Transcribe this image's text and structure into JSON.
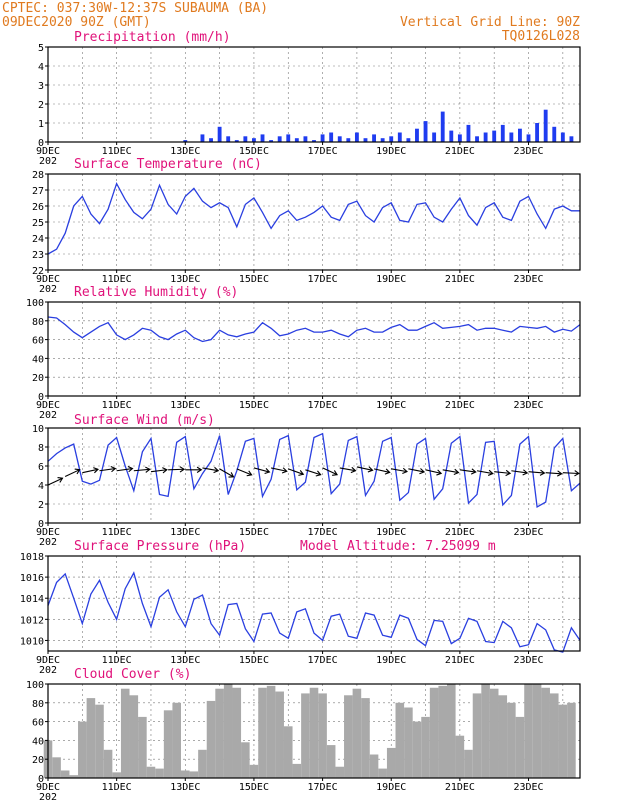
{
  "header": {
    "line1_left": "CPTEC:  037:30W-12:37S  SUBAUMA (BA)",
    "line2_left": "09DEC2020 90Z (GMT)",
    "line1_right": "Vertical Grid Line: 90Z",
    "line2_right": "TQ0126L028"
  },
  "colors": {
    "header": "#e07a1f",
    "panel_title": "#e0127a",
    "series": "#2a3fe0",
    "precip_bars": "#1f3cf0",
    "cloud_bars": "#a9a9a9",
    "wind_arrows": "#000000"
  },
  "x_axis": {
    "start": "2020-12-09T00:00Z",
    "end": "2020-12-24T12:00Z",
    "tick_labels": [
      "9DEC",
      "11DEC",
      "13DEC",
      "15DEC",
      "17DEC",
      "19DEC",
      "21DEC",
      "23DEC"
    ],
    "year_label": "202"
  },
  "chart_data": [
    {
      "type": "bar",
      "title": "Precipitation (mm/h)",
      "ylim": [
        0,
        5
      ],
      "yticks": [
        0,
        1,
        2,
        3,
        4,
        5
      ],
      "grid": true,
      "x": [
        "2020-12-13T00:00Z",
        "2020-12-13T12:00Z",
        "2020-12-13T18:00Z",
        "2020-12-14T00:00Z",
        "2020-12-14T06:00Z",
        "2020-12-14T12:00Z",
        "2020-12-14T18:00Z",
        "2020-12-15T00:00Z",
        "2020-12-15T06:00Z",
        "2020-12-15T12:00Z",
        "2020-12-15T18:00Z",
        "2020-12-16T00:00Z",
        "2020-12-16T06:00Z",
        "2020-12-16T12:00Z",
        "2020-12-16T18:00Z",
        "2020-12-17T00:00Z",
        "2020-12-17T06:00Z",
        "2020-12-17T12:00Z",
        "2020-12-17T18:00Z",
        "2020-12-18T00:00Z",
        "2020-12-18T06:00Z",
        "2020-12-18T12:00Z",
        "2020-12-18T18:00Z",
        "2020-12-19T00:00Z",
        "2020-12-19T06:00Z",
        "2020-12-19T12:00Z",
        "2020-12-19T18:00Z",
        "2020-12-20T00:00Z",
        "2020-12-20T06:00Z",
        "2020-12-20T12:00Z",
        "2020-12-20T18:00Z",
        "2020-12-21T00:00Z",
        "2020-12-21T06:00Z",
        "2020-12-21T12:00Z",
        "2020-12-21T18:00Z",
        "2020-12-22T00:00Z",
        "2020-12-22T06:00Z",
        "2020-12-22T12:00Z",
        "2020-12-22T18:00Z",
        "2020-12-23T00:00Z",
        "2020-12-23T06:00Z",
        "2020-12-23T12:00Z",
        "2020-12-23T18:00Z",
        "2020-12-24T00:00Z",
        "2020-12-24T06:00Z"
      ],
      "values": [
        0.1,
        0.4,
        0.2,
        0.8,
        0.3,
        0.1,
        0.3,
        0.2,
        0.4,
        0.1,
        0.3,
        0.4,
        0.2,
        0.3,
        0.1,
        0.4,
        0.5,
        0.3,
        0.2,
        0.5,
        0.2,
        0.4,
        0.2,
        0.3,
        0.5,
        0.2,
        0.7,
        1.1,
        0.5,
        1.6,
        0.6,
        0.4,
        0.9,
        0.3,
        0.5,
        0.6,
        0.9,
        0.5,
        0.7,
        0.4,
        1.0,
        1.7,
        0.8,
        0.5,
        0.3
      ]
    },
    {
      "type": "line",
      "title": "Surface Temperature (nC)",
      "ylim": [
        22,
        28
      ],
      "yticks": [
        22,
        23,
        24,
        25,
        26,
        27,
        28
      ],
      "grid": true,
      "x": [
        "2020-12-09T00:00Z",
        "2020-12-09T06:00Z",
        "2020-12-09T12:00Z",
        "2020-12-09T18:00Z",
        "2020-12-10T00:00Z",
        "2020-12-10T06:00Z",
        "2020-12-10T12:00Z",
        "2020-12-10T18:00Z",
        "2020-12-11T00:00Z",
        "2020-12-11T06:00Z",
        "2020-12-11T12:00Z",
        "2020-12-11T18:00Z",
        "2020-12-12T00:00Z",
        "2020-12-12T06:00Z",
        "2020-12-12T12:00Z",
        "2020-12-12T18:00Z",
        "2020-12-13T00:00Z",
        "2020-12-13T06:00Z",
        "2020-12-13T12:00Z",
        "2020-12-13T18:00Z",
        "2020-12-14T00:00Z",
        "2020-12-14T06:00Z",
        "2020-12-14T12:00Z",
        "2020-12-14T18:00Z",
        "2020-12-15T00:00Z",
        "2020-12-15T06:00Z",
        "2020-12-15T12:00Z",
        "2020-12-15T18:00Z",
        "2020-12-16T00:00Z",
        "2020-12-16T06:00Z",
        "2020-12-16T12:00Z",
        "2020-12-16T18:00Z",
        "2020-12-17T00:00Z",
        "2020-12-17T06:00Z",
        "2020-12-17T12:00Z",
        "2020-12-17T18:00Z",
        "2020-12-18T00:00Z",
        "2020-12-18T06:00Z",
        "2020-12-18T12:00Z",
        "2020-12-18T18:00Z",
        "2020-12-19T00:00Z",
        "2020-12-19T06:00Z",
        "2020-12-19T12:00Z",
        "2020-12-19T18:00Z",
        "2020-12-20T00:00Z",
        "2020-12-20T06:00Z",
        "2020-12-20T12:00Z",
        "2020-12-20T18:00Z",
        "2020-12-21T00:00Z",
        "2020-12-21T06:00Z",
        "2020-12-21T12:00Z",
        "2020-12-21T18:00Z",
        "2020-12-22T00:00Z",
        "2020-12-22T06:00Z",
        "2020-12-22T12:00Z",
        "2020-12-22T18:00Z",
        "2020-12-23T00:00Z",
        "2020-12-23T06:00Z",
        "2020-12-23T12:00Z",
        "2020-12-23T18:00Z",
        "2020-12-24T00:00Z",
        "2020-12-24T06:00Z",
        "2020-12-24T12:00Z"
      ],
      "values": [
        23.0,
        23.3,
        24.3,
        26.0,
        26.6,
        25.5,
        24.9,
        25.8,
        27.4,
        26.4,
        25.6,
        25.2,
        25.8,
        27.3,
        26.1,
        25.5,
        26.6,
        27.1,
        26.3,
        25.9,
        26.2,
        25.9,
        24.7,
        26.1,
        26.5,
        25.6,
        24.6,
        25.4,
        25.7,
        25.1,
        25.3,
        25.6,
        26.0,
        25.3,
        25.1,
        26.1,
        26.3,
        25.4,
        25.0,
        25.9,
        26.2,
        25.1,
        25.0,
        26.1,
        26.2,
        25.3,
        25.0,
        25.8,
        26.5,
        25.4,
        24.8,
        25.9,
        26.2,
        25.3,
        25.1,
        26.3,
        26.6,
        25.5,
        24.6,
        25.8,
        26.0,
        25.7,
        25.7
      ]
    },
    {
      "type": "line",
      "title": "Relative Humidity (%)",
      "ylim": [
        0,
        100
      ],
      "yticks": [
        0,
        20,
        40,
        60,
        80,
        100
      ],
      "grid": true,
      "x": [
        "2020-12-09T00:00Z",
        "2020-12-09T06:00Z",
        "2020-12-09T12:00Z",
        "2020-12-09T18:00Z",
        "2020-12-10T00:00Z",
        "2020-12-10T06:00Z",
        "2020-12-10T12:00Z",
        "2020-12-10T18:00Z",
        "2020-12-11T00:00Z",
        "2020-12-11T06:00Z",
        "2020-12-11T12:00Z",
        "2020-12-11T18:00Z",
        "2020-12-12T00:00Z",
        "2020-12-12T06:00Z",
        "2020-12-12T12:00Z",
        "2020-12-12T18:00Z",
        "2020-12-13T00:00Z",
        "2020-12-13T06:00Z",
        "2020-12-13T12:00Z",
        "2020-12-13T18:00Z",
        "2020-12-14T00:00Z",
        "2020-12-14T06:00Z",
        "2020-12-14T12:00Z",
        "2020-12-14T18:00Z",
        "2020-12-15T00:00Z",
        "2020-12-15T06:00Z",
        "2020-12-15T12:00Z",
        "2020-12-15T18:00Z",
        "2020-12-16T00:00Z",
        "2020-12-16T06:00Z",
        "2020-12-16T12:00Z",
        "2020-12-16T18:00Z",
        "2020-12-17T00:00Z",
        "2020-12-17T06:00Z",
        "2020-12-17T12:00Z",
        "2020-12-17T18:00Z",
        "2020-12-18T00:00Z",
        "2020-12-18T06:00Z",
        "2020-12-18T12:00Z",
        "2020-12-18T18:00Z",
        "2020-12-19T00:00Z",
        "2020-12-19T06:00Z",
        "2020-12-19T12:00Z",
        "2020-12-19T18:00Z",
        "2020-12-20T00:00Z",
        "2020-12-20T06:00Z",
        "2020-12-20T12:00Z",
        "2020-12-20T18:00Z",
        "2020-12-21T00:00Z",
        "2020-12-21T06:00Z",
        "2020-12-21T12:00Z",
        "2020-12-21T18:00Z",
        "2020-12-22T00:00Z",
        "2020-12-22T06:00Z",
        "2020-12-22T12:00Z",
        "2020-12-22T18:00Z",
        "2020-12-23T00:00Z",
        "2020-12-23T06:00Z",
        "2020-12-23T12:00Z",
        "2020-12-23T18:00Z",
        "2020-12-24T00:00Z",
        "2020-12-24T06:00Z",
        "2020-12-24T12:00Z"
      ],
      "values": [
        84,
        83,
        76,
        68,
        62,
        68,
        74,
        78,
        65,
        60,
        65,
        72,
        70,
        63,
        60,
        66,
        70,
        62,
        58,
        60,
        70,
        65,
        63,
        66,
        68,
        78,
        72,
        64,
        66,
        70,
        72,
        68,
        68,
        70,
        66,
        63,
        70,
        72,
        68,
        68,
        73,
        76,
        70,
        70,
        74,
        78,
        72,
        73,
        74,
        76,
        70,
        72,
        72,
        70,
        68,
        74,
        73,
        72,
        74,
        68,
        71,
        69,
        76
      ]
    },
    {
      "type": "line",
      "title": "Surface Wind (m/s)",
      "ylim": [
        0,
        10
      ],
      "yticks": [
        0,
        2,
        4,
        6,
        8,
        10
      ],
      "grid": true,
      "x": [
        "2020-12-09T00:00Z",
        "2020-12-09T06:00Z",
        "2020-12-09T12:00Z",
        "2020-12-09T18:00Z",
        "2020-12-10T00:00Z",
        "2020-12-10T06:00Z",
        "2020-12-10T12:00Z",
        "2020-12-10T18:00Z",
        "2020-12-11T00:00Z",
        "2020-12-11T06:00Z",
        "2020-12-11T12:00Z",
        "2020-12-11T18:00Z",
        "2020-12-12T00:00Z",
        "2020-12-12T06:00Z",
        "2020-12-12T12:00Z",
        "2020-12-12T18:00Z",
        "2020-12-13T00:00Z",
        "2020-12-13T06:00Z",
        "2020-12-13T12:00Z",
        "2020-12-13T18:00Z",
        "2020-12-14T00:00Z",
        "2020-12-14T06:00Z",
        "2020-12-14T12:00Z",
        "2020-12-14T18:00Z",
        "2020-12-15T00:00Z",
        "2020-12-15T06:00Z",
        "2020-12-15T12:00Z",
        "2020-12-15T18:00Z",
        "2020-12-16T00:00Z",
        "2020-12-16T06:00Z",
        "2020-12-16T12:00Z",
        "2020-12-16T18:00Z",
        "2020-12-17T00:00Z",
        "2020-12-17T06:00Z",
        "2020-12-17T12:00Z",
        "2020-12-17T18:00Z",
        "2020-12-18T00:00Z",
        "2020-12-18T06:00Z",
        "2020-12-18T12:00Z",
        "2020-12-18T18:00Z",
        "2020-12-19T00:00Z",
        "2020-12-19T06:00Z",
        "2020-12-19T12:00Z",
        "2020-12-19T18:00Z",
        "2020-12-20T00:00Z",
        "2020-12-20T06:00Z",
        "2020-12-20T12:00Z",
        "2020-12-20T18:00Z",
        "2020-12-21T00:00Z",
        "2020-12-21T06:00Z",
        "2020-12-21T12:00Z",
        "2020-12-21T18:00Z",
        "2020-12-22T00:00Z",
        "2020-12-22T06:00Z",
        "2020-12-22T12:00Z",
        "2020-12-22T18:00Z",
        "2020-12-23T00:00Z",
        "2020-12-23T06:00Z",
        "2020-12-23T12:00Z",
        "2020-12-23T18:00Z",
        "2020-12-24T00:00Z",
        "2020-12-24T06:00Z",
        "2020-12-24T12:00Z"
      ],
      "values": [
        6.5,
        7.3,
        7.9,
        8.3,
        4.4,
        4.1,
        4.5,
        8.2,
        9.0,
        6.0,
        3.4,
        7.5,
        8.9,
        3.0,
        2.8,
        8.5,
        9.1,
        3.6,
        5.2,
        6.5,
        9.2,
        3.0,
        5.5,
        8.6,
        8.9,
        2.8,
        4.6,
        8.8,
        9.2,
        3.5,
        4.3,
        9.0,
        9.4,
        3.1,
        4.1,
        8.7,
        9.1,
        2.9,
        4.4,
        8.6,
        9.0,
        2.4,
        3.2,
        8.3,
        8.9,
        2.5,
        3.6,
        8.4,
        9.1,
        2.1,
        3.0,
        8.5,
        8.6,
        1.9,
        2.9,
        8.3,
        9.1,
        1.7,
        2.2,
        7.9,
        8.9,
        3.4,
        4.2
      ],
      "wind_arrows": {
        "x": [
          "2020-12-09T00:00Z",
          "2020-12-09T12:00Z",
          "2020-12-10T00:00Z",
          "2020-12-10T12:00Z",
          "2020-12-11T00:00Z",
          "2020-12-11T12:00Z",
          "2020-12-12T00:00Z",
          "2020-12-12T12:00Z",
          "2020-12-13T00:00Z",
          "2020-12-13T12:00Z",
          "2020-12-14T00:00Z",
          "2020-12-14T12:00Z",
          "2020-12-15T00:00Z",
          "2020-12-15T12:00Z",
          "2020-12-16T00:00Z",
          "2020-12-16T12:00Z",
          "2020-12-17T00:00Z",
          "2020-12-17T12:00Z",
          "2020-12-18T00:00Z",
          "2020-12-18T12:00Z",
          "2020-12-19T00:00Z",
          "2020-12-19T12:00Z",
          "2020-12-20T00:00Z",
          "2020-12-20T12:00Z",
          "2020-12-21T00:00Z",
          "2020-12-21T12:00Z",
          "2020-12-22T00:00Z",
          "2020-12-22T12:00Z",
          "2020-12-23T00:00Z",
          "2020-12-23T12:00Z",
          "2020-12-24T00:00Z"
        ],
        "speed": [
          4.0,
          4.9,
          5.3,
          5.5,
          5.5,
          5.5,
          5.4,
          5.6,
          5.6,
          5.8,
          5.7,
          5.7,
          5.8,
          5.8,
          5.7,
          5.6,
          5.8,
          5.8,
          5.9,
          5.7,
          5.7,
          5.7,
          5.6,
          5.6,
          5.6,
          5.5,
          5.4,
          5.5,
          5.4,
          5.3,
          5.3
        ],
        "direction_deg": [
          245,
          245,
          258,
          262,
          262,
          265,
          263,
          268,
          270,
          280,
          300,
          292,
          285,
          282,
          290,
          288,
          295,
          280,
          282,
          283,
          280,
          281,
          283,
          280,
          278,
          280,
          276,
          278,
          275,
          274,
          273
        ]
      }
    },
    {
      "type": "line",
      "title": "Surface Pressure (hPa)",
      "annotation": "Model Altitude: 7.25099 m",
      "ylim": [
        1009,
        1018
      ],
      "yticks": [
        1010,
        1012,
        1014,
        1016,
        1018
      ],
      "grid": true,
      "x": [
        "2020-12-09T00:00Z",
        "2020-12-09T06:00Z",
        "2020-12-09T12:00Z",
        "2020-12-09T18:00Z",
        "2020-12-10T00:00Z",
        "2020-12-10T06:00Z",
        "2020-12-10T12:00Z",
        "2020-12-10T18:00Z",
        "2020-12-11T00:00Z",
        "2020-12-11T06:00Z",
        "2020-12-11T12:00Z",
        "2020-12-11T18:00Z",
        "2020-12-12T00:00Z",
        "2020-12-12T06:00Z",
        "2020-12-12T12:00Z",
        "2020-12-12T18:00Z",
        "2020-12-13T00:00Z",
        "2020-12-13T06:00Z",
        "2020-12-13T12:00Z",
        "2020-12-13T18:00Z",
        "2020-12-14T00:00Z",
        "2020-12-14T06:00Z",
        "2020-12-14T12:00Z",
        "2020-12-14T18:00Z",
        "2020-12-15T00:00Z",
        "2020-12-15T06:00Z",
        "2020-12-15T12:00Z",
        "2020-12-15T18:00Z",
        "2020-12-16T00:00Z",
        "2020-12-16T06:00Z",
        "2020-12-16T12:00Z",
        "2020-12-16T18:00Z",
        "2020-12-17T00:00Z",
        "2020-12-17T06:00Z",
        "2020-12-17T12:00Z",
        "2020-12-17T18:00Z",
        "2020-12-18T00:00Z",
        "2020-12-18T06:00Z",
        "2020-12-18T12:00Z",
        "2020-12-18T18:00Z",
        "2020-12-19T00:00Z",
        "2020-12-19T06:00Z",
        "2020-12-19T12:00Z",
        "2020-12-19T18:00Z",
        "2020-12-20T00:00Z",
        "2020-12-20T06:00Z",
        "2020-12-20T12:00Z",
        "2020-12-20T18:00Z",
        "2020-12-21T00:00Z",
        "2020-12-21T06:00Z",
        "2020-12-21T12:00Z",
        "2020-12-21T18:00Z",
        "2020-12-22T00:00Z",
        "2020-12-22T06:00Z",
        "2020-12-22T12:00Z",
        "2020-12-22T18:00Z",
        "2020-12-23T00:00Z",
        "2020-12-23T06:00Z",
        "2020-12-23T12:00Z",
        "2020-12-23T18:00Z",
        "2020-12-24T00:00Z",
        "2020-12-24T06:00Z",
        "2020-12-24T12:00Z"
      ],
      "values": [
        1013.3,
        1015.5,
        1016.3,
        1014.0,
        1011.6,
        1014.4,
        1015.7,
        1013.6,
        1012.0,
        1014.9,
        1016.4,
        1013.5,
        1011.3,
        1014.1,
        1014.8,
        1012.7,
        1011.3,
        1013.9,
        1014.3,
        1011.6,
        1010.5,
        1013.4,
        1013.5,
        1011.1,
        1009.9,
        1012.5,
        1012.6,
        1010.7,
        1010.2,
        1012.7,
        1013.0,
        1010.7,
        1010.0,
        1012.3,
        1012.5,
        1010.4,
        1010.2,
        1012.6,
        1012.4,
        1010.5,
        1010.3,
        1012.4,
        1012.1,
        1010.1,
        1009.5,
        1011.9,
        1011.8,
        1009.7,
        1010.2,
        1012.1,
        1011.8,
        1009.9,
        1009.8,
        1011.8,
        1011.2,
        1009.4,
        1009.6,
        1011.6,
        1011.0,
        1009.1,
        1008.9,
        1011.2,
        1010.0
      ]
    },
    {
      "type": "bar",
      "title": "Cloud Cover (%)",
      "ylim": [
        0,
        100
      ],
      "yticks": [
        0,
        20,
        40,
        60,
        80,
        100
      ],
      "grid": true,
      "x": [
        "2020-12-09T00:00Z",
        "2020-12-09T06:00Z",
        "2020-12-09T12:00Z",
        "2020-12-09T18:00Z",
        "2020-12-10T00:00Z",
        "2020-12-10T06:00Z",
        "2020-12-10T12:00Z",
        "2020-12-10T18:00Z",
        "2020-12-11T00:00Z",
        "2020-12-11T06:00Z",
        "2020-12-11T12:00Z",
        "2020-12-11T18:00Z",
        "2020-12-12T00:00Z",
        "2020-12-12T06:00Z",
        "2020-12-12T12:00Z",
        "2020-12-12T18:00Z",
        "2020-12-13T00:00Z",
        "2020-12-13T06:00Z",
        "2020-12-13T12:00Z",
        "2020-12-13T18:00Z",
        "2020-12-14T00:00Z",
        "2020-12-14T06:00Z",
        "2020-12-14T12:00Z",
        "2020-12-14T18:00Z",
        "2020-12-15T00:00Z",
        "2020-12-15T06:00Z",
        "2020-12-15T12:00Z",
        "2020-12-15T18:00Z",
        "2020-12-16T00:00Z",
        "2020-12-16T06:00Z",
        "2020-12-16T12:00Z",
        "2020-12-16T18:00Z",
        "2020-12-17T00:00Z",
        "2020-12-17T06:00Z",
        "2020-12-17T12:00Z",
        "2020-12-17T18:00Z",
        "2020-12-18T00:00Z",
        "2020-12-18T06:00Z",
        "2020-12-18T12:00Z",
        "2020-12-18T18:00Z",
        "2020-12-19T00:00Z",
        "2020-12-19T06:00Z",
        "2020-12-19T12:00Z",
        "2020-12-19T18:00Z",
        "2020-12-20T00:00Z",
        "2020-12-20T06:00Z",
        "2020-12-20T12:00Z",
        "2020-12-20T18:00Z",
        "2020-12-21T00:00Z",
        "2020-12-21T06:00Z",
        "2020-12-21T12:00Z",
        "2020-12-21T18:00Z",
        "2020-12-22T00:00Z",
        "2020-12-22T06:00Z",
        "2020-12-22T12:00Z",
        "2020-12-22T18:00Z",
        "2020-12-23T00:00Z",
        "2020-12-23T06:00Z",
        "2020-12-23T12:00Z",
        "2020-12-23T18:00Z",
        "2020-12-24T00:00Z",
        "2020-12-24T06:00Z"
      ],
      "values": [
        40,
        22,
        8,
        3,
        60,
        85,
        78,
        30,
        6,
        95,
        88,
        65,
        12,
        10,
        72,
        80,
        8,
        7,
        30,
        82,
        95,
        100,
        96,
        38,
        14,
        96,
        98,
        92,
        55,
        15,
        90,
        96,
        90,
        35,
        12,
        88,
        95,
        85,
        25,
        10,
        32,
        80,
        75,
        60,
        65,
        96,
        98,
        100,
        45,
        30,
        90,
        100,
        95,
        88,
        80,
        65,
        100,
        100,
        96,
        90,
        78,
        80
      ]
    }
  ]
}
